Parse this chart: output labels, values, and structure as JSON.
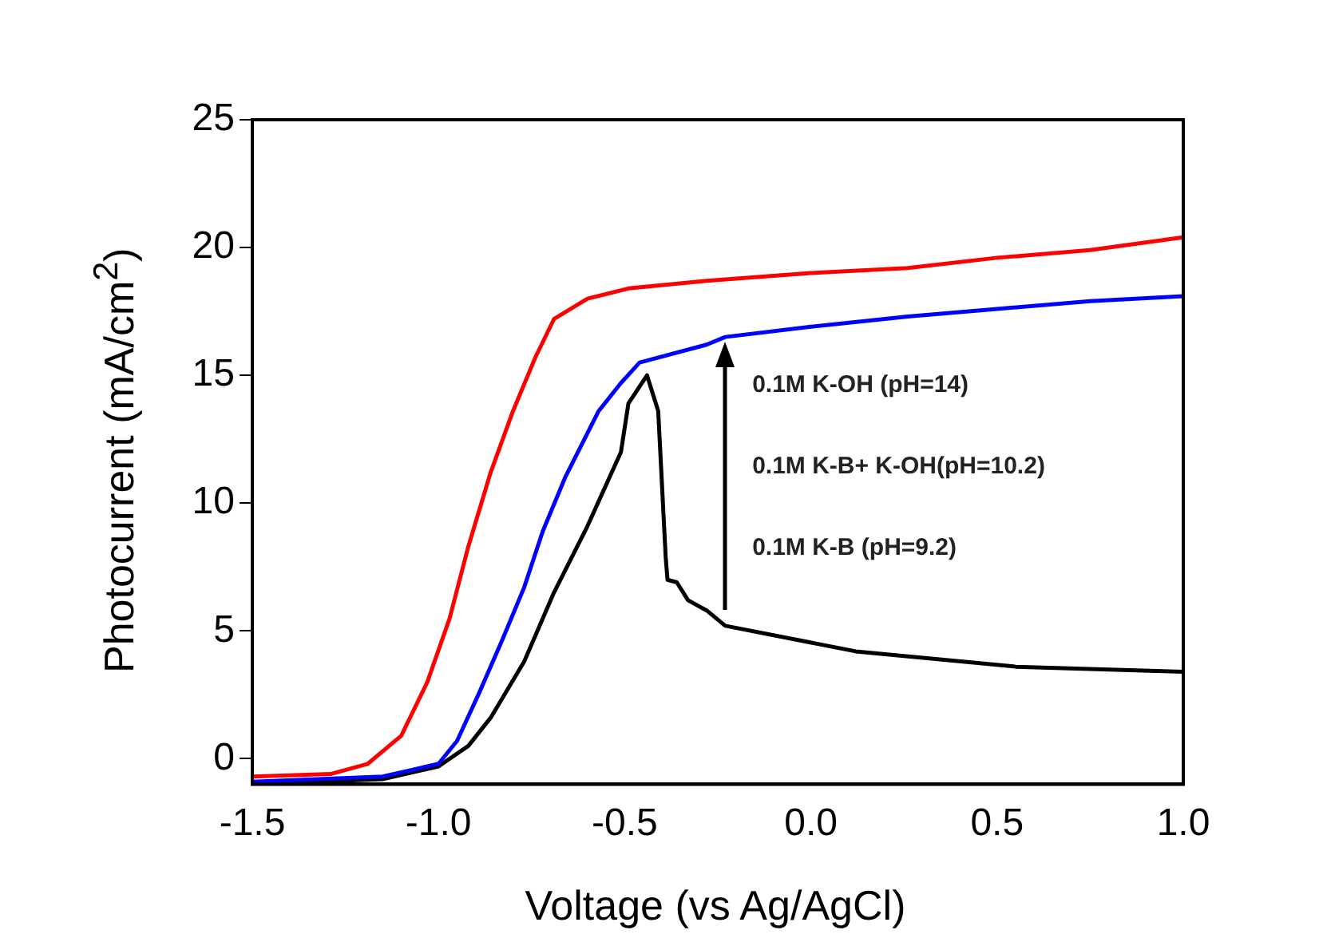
{
  "chart_data": {
    "type": "line",
    "xlabel": "Voltage (vs Ag/AgCl)",
    "ylabel": "Photocurrent (mA/cm$^{2}$)",
    "annotations": [
      {
        "text": "0.1M K-OH (pH=14)",
        "x": -0.23,
        "y": 16.3
      },
      "0.1M K-B+ K-OH(pH=10.2)",
      "0.1M K-B (pH=9.2)"
    ],
    "xlim": [
      -1.5,
      1.0
    ],
    "xticks": [
      {
        "value": -1.5,
        "label": "-1.5"
      },
      {
        "value": -1.0,
        "label": "-1.0"
      },
      {
        "value": -0.5,
        "label": "-0.5"
      },
      {
        "value": 0.0,
        "label": "0.0"
      },
      {
        "value": 0.5,
        "label": "0.5"
      },
      {
        "value": 1.0,
        "label": "1.0"
      }
    ],
    "ylim": [
      -1,
      25
    ],
    "yticks": [
      0,
      5,
      10,
      15,
      20,
      25
    ],
    "grid": false,
    "legend": false,
    "marker": "none",
    "line_style": "solid",
    "series": [
      {
        "color": "#ff0000",
        "x": [
          -1.5,
          -1.29,
          -1.19,
          -1.1,
          -1.03,
          -0.97,
          -0.92,
          -0.86,
          -0.8,
          -0.74,
          -0.69,
          -0.6,
          -0.49,
          -0.28,
          0.0,
          0.26,
          0.5,
          0.75,
          1.0
        ],
        "values": [
          -0.7,
          -0.6,
          -0.2,
          0.9,
          3.0,
          5.5,
          8.3,
          11.2,
          13.6,
          15.7,
          17.2,
          18.0,
          18.4,
          18.7,
          19.0,
          19.2,
          19.6,
          19.9,
          20.4
        ]
      },
      {
        "color": "#0000ff",
        "x": [
          -1.5,
          -1.15,
          -1.0,
          -0.95,
          -0.89,
          -0.83,
          -0.77,
          -0.72,
          -0.66,
          -0.57,
          -0.51,
          -0.46,
          -0.28,
          -0.23,
          0.0,
          0.26,
          0.5,
          0.75,
          1.0
        ],
        "values": [
          -0.9,
          -0.7,
          -0.2,
          0.7,
          2.6,
          4.6,
          6.7,
          8.9,
          11.0,
          13.6,
          14.7,
          15.5,
          16.2,
          16.5,
          16.9,
          17.3,
          17.6,
          17.9,
          18.1
        ]
      },
      {
        "color": "#000000",
        "x": [
          -1.5,
          -1.15,
          -1.0,
          -0.92,
          -0.86,
          -0.77,
          -0.69,
          -0.6,
          -0.51,
          -0.49,
          -0.44,
          -0.41,
          -0.39,
          -0.385,
          -0.36,
          -0.33,
          -0.28,
          -0.23,
          0.12,
          0.55,
          1.0
        ],
        "values": [
          -1.0,
          -0.8,
          -0.3,
          0.5,
          1.6,
          3.8,
          6.5,
          9.1,
          12.0,
          13.9,
          15.0,
          13.6,
          7.9,
          7.0,
          6.9,
          6.2,
          5.8,
          5.2,
          4.2,
          3.6,
          3.4
        ]
      }
    ]
  }
}
